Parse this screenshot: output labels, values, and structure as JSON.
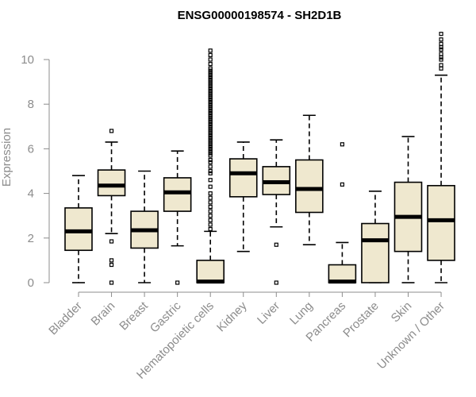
{
  "chart_data": {
    "type": "box",
    "title": "ENSG00000198574 - SH2D1B",
    "xlabel": "",
    "ylabel": "Expression",
    "ylim": [
      0,
      11
    ],
    "yticks": [
      0,
      2,
      4,
      6,
      8,
      10
    ],
    "grid": false,
    "categories": [
      "Bladder",
      "Brain",
      "Breast",
      "Gastric",
      "Hematopoietic cells",
      "Kidney",
      "Liver",
      "Lung",
      "Pancreas",
      "Prostate",
      "Skin",
      "Unknown / Other"
    ],
    "series": [
      {
        "category": "Bladder",
        "whisker_low": 0.0,
        "q1": 1.45,
        "median": 2.3,
        "q3": 3.35,
        "whisker_high": 4.8,
        "outliers": []
      },
      {
        "category": "Brain",
        "whisker_low": 2.2,
        "q1": 3.9,
        "median": 4.35,
        "q3": 5.05,
        "whisker_high": 6.3,
        "outliers": [
          6.8,
          1.85,
          1.0,
          0.8,
          0.0
        ]
      },
      {
        "category": "Breast",
        "whisker_low": 0.0,
        "q1": 1.55,
        "median": 2.35,
        "q3": 3.2,
        "whisker_high": 5.0,
        "outliers": []
      },
      {
        "category": "Gastric",
        "whisker_low": 1.65,
        "q1": 3.2,
        "median": 4.05,
        "q3": 4.7,
        "whisker_high": 5.9,
        "outliers": [
          0.0
        ]
      },
      {
        "category": "Hematopoietic cells",
        "whisker_low": 0.0,
        "q1": 0.0,
        "median": 0.05,
        "q3": 1.0,
        "whisker_high": 2.3,
        "outliers": [
          2.4,
          2.6,
          2.8,
          3.0,
          3.2,
          3.4,
          3.6,
          3.8,
          4.0,
          4.3,
          4.6,
          4.9,
          5.0,
          5.2,
          5.4,
          5.5,
          5.7,
          5.8,
          5.9,
          6.0,
          6.1,
          6.2,
          6.3,
          6.4,
          6.5,
          6.6,
          6.7,
          6.8,
          6.9,
          7.0,
          7.1,
          7.2,
          7.3,
          7.4,
          7.5,
          7.6,
          7.7,
          7.8,
          7.9,
          8.0,
          8.1,
          8.2,
          8.3,
          8.4,
          8.5,
          8.6,
          8.7,
          8.8,
          8.9,
          9.0,
          9.1,
          9.2,
          9.3,
          9.4,
          9.5,
          9.6,
          9.8,
          10.0,
          10.2,
          10.4
        ]
      },
      {
        "category": "Kidney",
        "whisker_low": 1.4,
        "q1": 3.85,
        "median": 4.9,
        "q3": 5.55,
        "whisker_high": 6.3,
        "outliers": []
      },
      {
        "category": "Liver",
        "whisker_low": 2.5,
        "q1": 3.95,
        "median": 4.5,
        "q3": 5.2,
        "whisker_high": 6.4,
        "outliers": [
          1.7,
          0.0
        ]
      },
      {
        "category": "Lung",
        "whisker_low": 1.7,
        "q1": 3.15,
        "median": 4.2,
        "q3": 5.5,
        "whisker_high": 7.5,
        "outliers": []
      },
      {
        "category": "Pancreas",
        "whisker_low": 0.0,
        "q1": 0.0,
        "median": 0.05,
        "q3": 0.8,
        "whisker_high": 1.8,
        "outliers": [
          4.4,
          6.2
        ]
      },
      {
        "category": "Prostate",
        "whisker_low": 0.0,
        "q1": 0.0,
        "median": 1.9,
        "q3": 2.65,
        "whisker_high": 4.1,
        "outliers": []
      },
      {
        "category": "Skin",
        "whisker_low": 0.0,
        "q1": 1.4,
        "median": 2.95,
        "q3": 4.5,
        "whisker_high": 6.55,
        "outliers": []
      },
      {
        "category": "Unknown / Other",
        "whisker_low": 0.0,
        "q1": 1.0,
        "median": 2.8,
        "q3": 4.35,
        "whisker_high": 9.3,
        "outliers": [
          9.6,
          9.75,
          10.0,
          10.1,
          10.25,
          10.45,
          10.55,
          10.7,
          10.9,
          11.15
        ]
      }
    ],
    "colors": {
      "box_fill": "#efe8cf",
      "box_stroke": "#000000",
      "axis": "#8c8c8c"
    }
  }
}
